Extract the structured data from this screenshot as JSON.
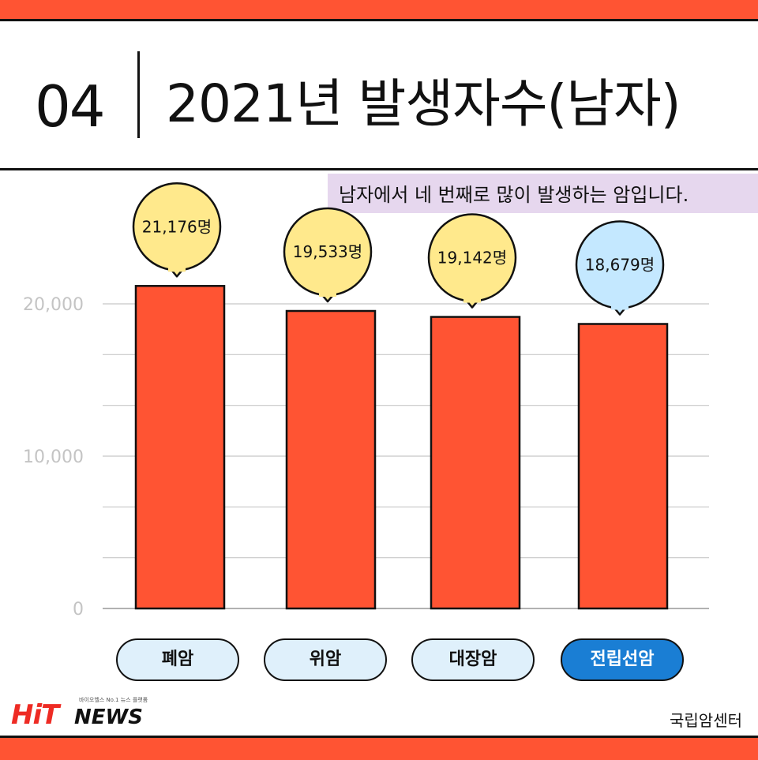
{
  "header": {
    "section_number": "04",
    "title": "2021년 발생자수(남자)"
  },
  "note": "남자에서 네 번째로 많이 발생하는 암입니다.",
  "chart_data": {
    "type": "bar",
    "title": "2021년 발생자수(남자)",
    "categories": [
      "폐암",
      "위암",
      "대장암",
      "전립선암"
    ],
    "values": [
      21176,
      19533,
      19142,
      18679
    ],
    "value_labels": [
      "21,176명",
      "19,533명",
      "19,142명",
      "18,679명"
    ],
    "highlight": "전립선암",
    "ylim": [
      0,
      20000
    ],
    "y_ticks": [
      {
        "value": 0,
        "label": "0"
      },
      {
        "value": 10000,
        "label": "10,000"
      },
      {
        "value": 20000,
        "label": "20,000"
      }
    ],
    "minor_gridlines": [
      3333,
      6667,
      13333,
      16667
    ],
    "grid": true
  },
  "colors": {
    "accent": "#ff5433",
    "bar": "#ff5433",
    "callout": "#ffe98c",
    "callout_highlight": "#c4e8ff",
    "pill": "#dff0fb",
    "pill_highlight": "#1a7ed4",
    "note_bg": "#e6d7ee"
  },
  "footer": {
    "logo_main": "HiT",
    "logo_sub": "NEWS",
    "logo_tagline": "바이오헬스 No.1 뉴스 플랫폼",
    "source": "국립암센터"
  }
}
